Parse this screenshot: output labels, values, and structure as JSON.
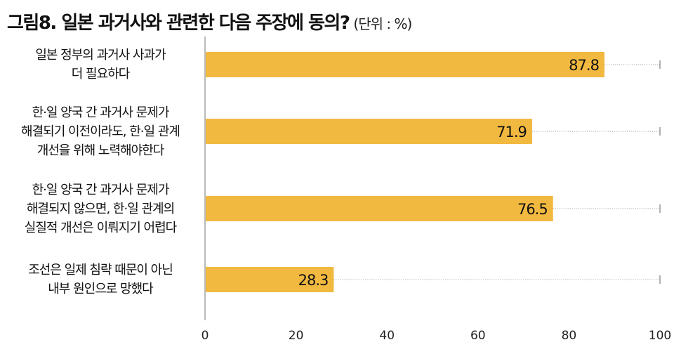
{
  "title": "그림8. 일본 과거사와 관련한 다음 주장에 동의?",
  "unit": "(단위 : %)",
  "chart_data": {
    "type": "bar",
    "orientation": "horizontal",
    "categories": [
      [
        "일본 정부의 과거사 사과가",
        "더 필요하다"
      ],
      [
        "한·일 양국 간 과거사 문제가",
        "해결되기 이전이라도, 한·일 관계",
        "개선을 위해 노력해야한다"
      ],
      [
        "한·일 양국 간 과거사 문제가",
        "해결되지 않으면, 한·일 관계의",
        "실질적 개선은 이뤄지기 어렵다"
      ],
      [
        "조선은 일제 침략 때문이 아닌",
        "내부 원인으로 망했다"
      ]
    ],
    "values": [
      87.8,
      71.9,
      76.5,
      28.3
    ],
    "value_labels": [
      "87.8",
      "71.9",
      "76.5",
      "28.3"
    ],
    "xlim": [
      0,
      100
    ],
    "xticks": [
      "0",
      "20",
      "40",
      "60",
      "80",
      "100"
    ],
    "bar_color": "#F2B940"
  }
}
